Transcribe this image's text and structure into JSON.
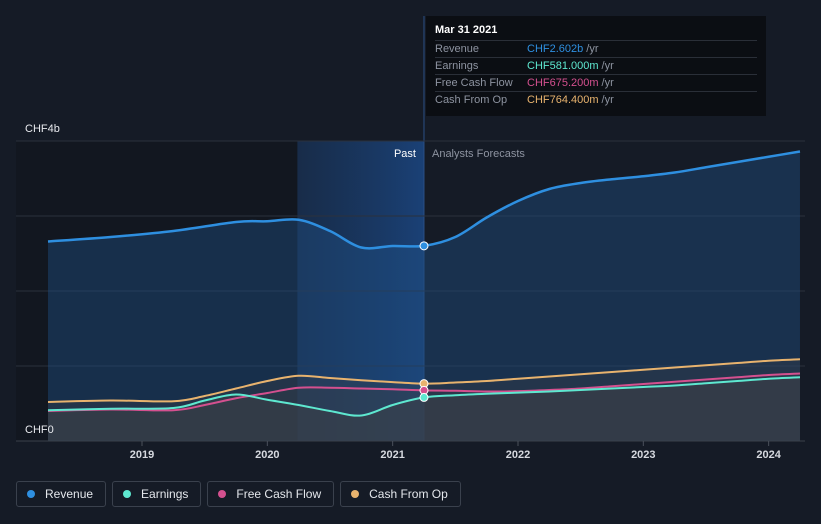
{
  "chart_data": {
    "type": "area",
    "y_unit_labels": [
      "CHF4b",
      "CHF0"
    ],
    "ylim": [
      0,
      4
    ],
    "xlim": [
      2018.2,
      2024.25
    ],
    "x_ticks": [
      {
        "value": 2019,
        "label": "2019"
      },
      {
        "value": 2020,
        "label": "2020"
      },
      {
        "value": 2021,
        "label": "2021"
      },
      {
        "value": 2022,
        "label": "2022"
      },
      {
        "value": 2023,
        "label": "2023"
      },
      {
        "value": 2024,
        "label": "2024"
      }
    ],
    "past_label": "Past",
    "forecast_label": "Analysts Forecasts",
    "past_start": 2020.24,
    "divider": 2021.25,
    "series": [
      {
        "name": "Revenue",
        "color": "#2e8fe0",
        "x": [
          2018.25,
          2018.75,
          2019.25,
          2019.75,
          2020.0,
          2020.25,
          2020.5,
          2020.75,
          2021.0,
          2021.25,
          2021.5,
          2021.75,
          2022.0,
          2022.25,
          2022.5,
          2022.75,
          2023.0,
          2023.25,
          2023.5,
          2023.75,
          2024.0,
          2024.25
        ],
        "y": [
          2.66,
          2.72,
          2.8,
          2.92,
          2.93,
          2.95,
          2.8,
          2.58,
          2.6,
          2.602,
          2.72,
          2.98,
          3.2,
          3.36,
          3.44,
          3.49,
          3.53,
          3.58,
          3.65,
          3.72,
          3.79,
          3.86
        ]
      },
      {
        "name": "Earnings",
        "color": "#5ee8d0",
        "x": [
          2018.25,
          2018.75,
          2019.25,
          2019.5,
          2019.75,
          2020.0,
          2020.25,
          2020.5,
          2020.75,
          2021.0,
          2021.25,
          2021.5,
          2021.75,
          2022.0,
          2022.25,
          2022.5,
          2022.75,
          2023.0,
          2023.25,
          2023.5,
          2023.75,
          2024.0,
          2024.25
        ],
        "y": [
          0.41,
          0.43,
          0.44,
          0.54,
          0.62,
          0.55,
          0.48,
          0.4,
          0.34,
          0.48,
          0.581,
          0.61,
          0.63,
          0.645,
          0.66,
          0.68,
          0.7,
          0.72,
          0.74,
          0.77,
          0.8,
          0.83,
          0.85
        ]
      },
      {
        "name": "Free Cash Flow",
        "color": "#d4508f",
        "x": [
          2018.25,
          2018.75,
          2019.25,
          2019.5,
          2019.75,
          2020.0,
          2020.25,
          2020.5,
          2020.75,
          2021.0,
          2021.25,
          2021.5,
          2021.75,
          2022.0,
          2022.25,
          2022.5,
          2022.75,
          2023.0,
          2023.25,
          2023.5,
          2023.75,
          2024.0,
          2024.25
        ],
        "y": [
          0.4,
          0.42,
          0.41,
          0.48,
          0.57,
          0.64,
          0.71,
          0.71,
          0.7,
          0.69,
          0.6752,
          0.67,
          0.66,
          0.665,
          0.68,
          0.7,
          0.73,
          0.76,
          0.79,
          0.82,
          0.85,
          0.88,
          0.9
        ]
      },
      {
        "name": "Cash From Op",
        "color": "#e8b36e",
        "x": [
          2018.25,
          2018.75,
          2019.25,
          2019.5,
          2019.75,
          2020.0,
          2020.25,
          2020.5,
          2020.75,
          2021.0,
          2021.25,
          2021.5,
          2021.75,
          2022.0,
          2022.25,
          2022.5,
          2022.75,
          2023.0,
          2023.25,
          2023.5,
          2023.75,
          2024.0,
          2024.25
        ],
        "y": [
          0.52,
          0.54,
          0.53,
          0.6,
          0.7,
          0.8,
          0.87,
          0.84,
          0.81,
          0.785,
          0.7644,
          0.78,
          0.8,
          0.83,
          0.86,
          0.89,
          0.92,
          0.95,
          0.98,
          1.01,
          1.04,
          1.07,
          1.09
        ]
      }
    ],
    "highlight_x": 2021.25
  },
  "tooltip": {
    "date": "Mar 31 2021",
    "rows": [
      {
        "name": "Revenue",
        "value": "CHF2.602b",
        "unit": "/yr",
        "color": "#2e8fe0"
      },
      {
        "name": "Earnings",
        "value": "CHF581.000m",
        "unit": "/yr",
        "color": "#5ee8d0"
      },
      {
        "name": "Free Cash Flow",
        "value": "CHF675.200m",
        "unit": "/yr",
        "color": "#d4508f"
      },
      {
        "name": "Cash From Op",
        "value": "CHF764.400m",
        "unit": "/yr",
        "color": "#e8b36e"
      }
    ]
  },
  "legend": [
    {
      "label": "Revenue",
      "color": "#2e8fe0"
    },
    {
      "label": "Earnings",
      "color": "#5ee8d0"
    },
    {
      "label": "Free Cash Flow",
      "color": "#d4508f"
    },
    {
      "label": "Cash From Op",
      "color": "#e8b36e"
    }
  ]
}
